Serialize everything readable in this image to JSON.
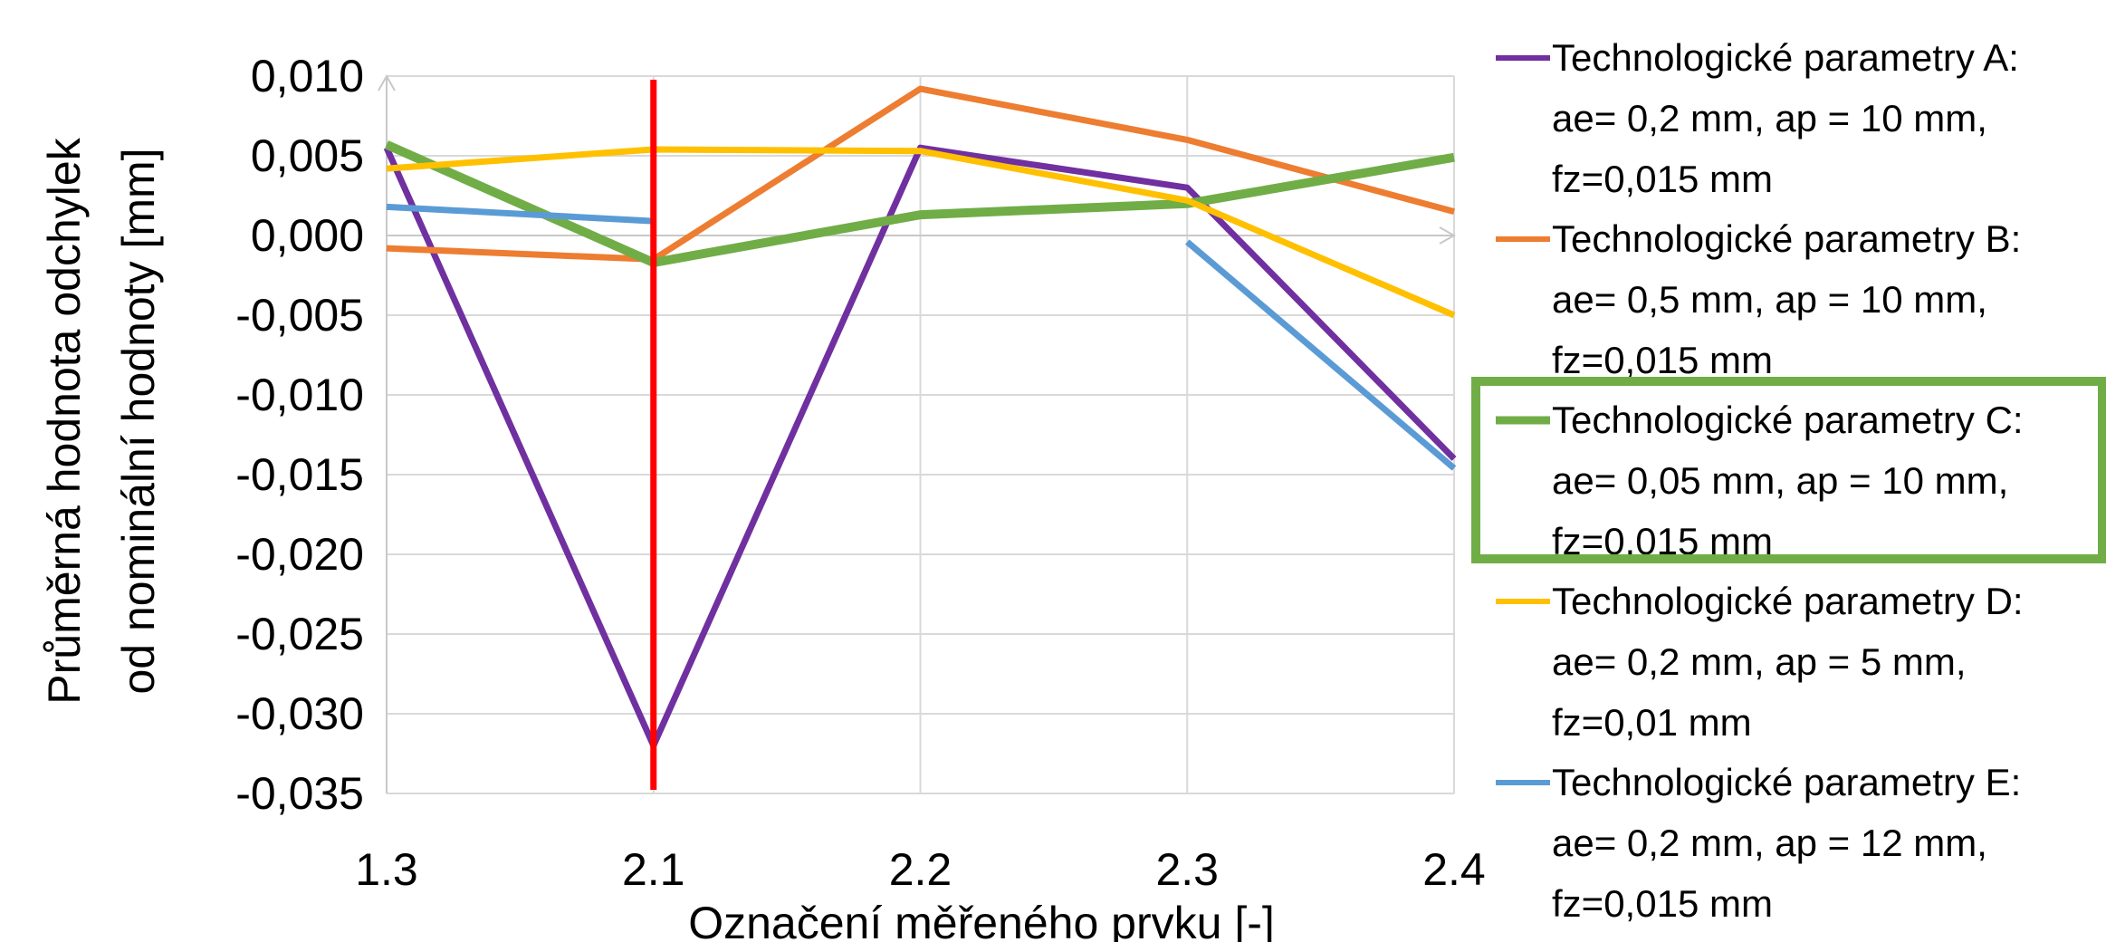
{
  "chart_data": {
    "type": "line",
    "categories": [
      "1.3",
      "2.1",
      "2.2",
      "2.3",
      "2.4"
    ],
    "xlabel": "Označení měřeného prvku [-]",
    "ylabel_lines": [
      "Průměrná hodnota odchylek",
      "od nominální hodnoty [mm]"
    ],
    "ylim": [
      -0.035,
      0.01
    ],
    "yticks": [
      "0,010",
      "0,005",
      "0,000",
      "-0,005",
      "-0,010",
      "-0,015",
      "-0,020",
      "-0,025",
      "-0,030",
      "-0,035"
    ],
    "grid": true,
    "legend_position": "right",
    "series": [
      {
        "name": "Technologické parametry A:",
        "params_line1": "ae= 0,2 mm, ap = 10 mm,",
        "params_line2": "fz=0,015 mm",
        "color": "#7030A0",
        "values": [
          0.0055,
          -0.032,
          0.0055,
          0.003,
          -0.014
        ]
      },
      {
        "name": "Technologické parametry B:",
        "params_line1": "ae= 0,5 mm, ap = 10 mm,",
        "params_line2": "fz=0,015 mm",
        "color": "#ED7D31",
        "values": [
          -0.0008,
          -0.0015,
          0.0092,
          0.006,
          0.0015
        ]
      },
      {
        "name": "Technologické parametry C:",
        "params_line1": "ae= 0,05 mm, ap = 10 mm,",
        "params_line2": "fz=0,015 mm",
        "color": "#70AD47",
        "highlighted": true,
        "values": [
          0.0057,
          -0.0017,
          0.0013,
          0.002,
          0.0049
        ]
      },
      {
        "name": "Technologické parametry D:",
        "params_line1": "ae= 0,2 mm, ap = 5 mm,",
        "params_line2": "fz=0,01 mm",
        "color": "#FFC000",
        "values": [
          0.0042,
          0.0054,
          0.0053,
          0.0022,
          -0.005
        ]
      },
      {
        "name": "Technologické parametry E:",
        "params_line1": "ae= 0,2 mm, ap = 12 mm,",
        "params_line2": "fz=0,015 mm",
        "color": "#5B9BD5",
        "values": [
          0.0018,
          0.0009,
          null,
          -0.0004,
          -0.0146
        ]
      }
    ],
    "reference_line": {
      "category": "2.1",
      "color": "#FF0000"
    }
  }
}
